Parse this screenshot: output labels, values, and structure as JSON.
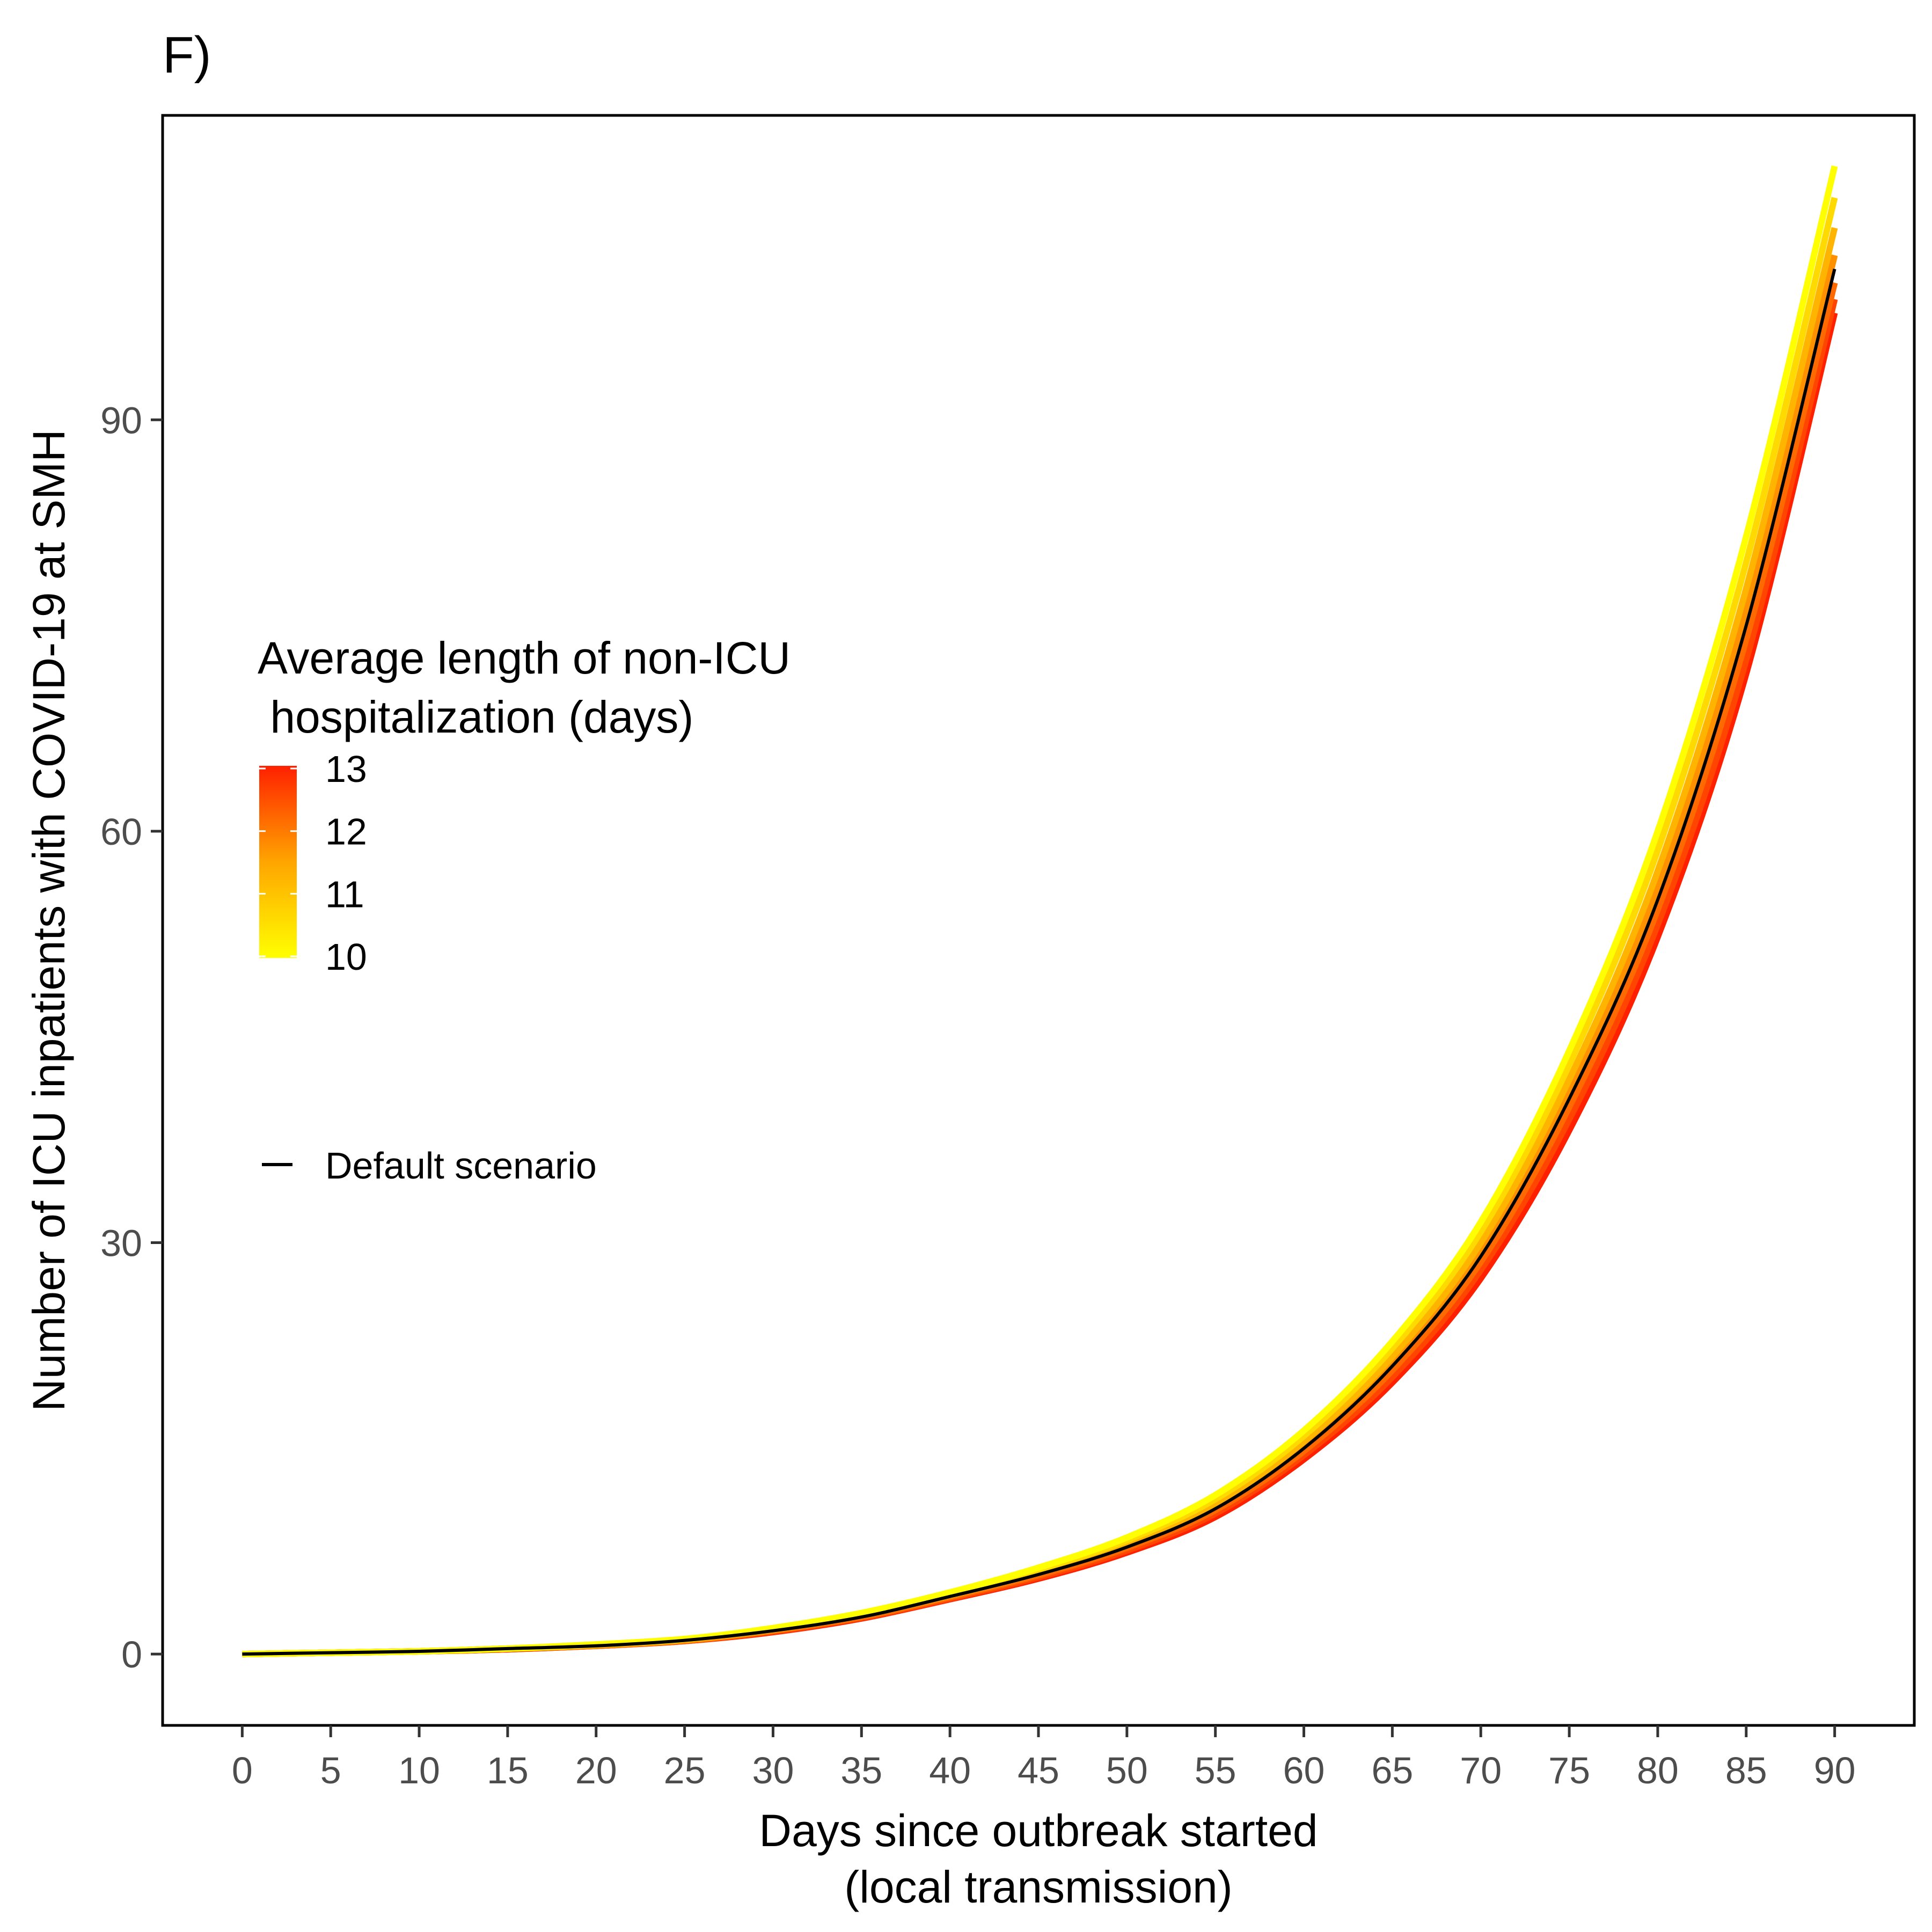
{
  "chart_data": {
    "type": "line",
    "panel_label": "F)",
    "xlabel_line1": "Days since outbreak started",
    "xlabel_line2": "(local transmission)",
    "ylabel": "Number of ICU inpatients with COVID-19 at SMH",
    "xlim": [
      -4.5,
      94.5
    ],
    "ylim": [
      -5.2,
      112.2
    ],
    "x_ticks": [
      0,
      5,
      10,
      15,
      20,
      25,
      30,
      35,
      40,
      45,
      50,
      55,
      60,
      65,
      70,
      75,
      80,
      85,
      90
    ],
    "y_ticks": [
      0,
      30,
      60,
      90
    ],
    "grid": false,
    "x": [
      0,
      5,
      10,
      15,
      20,
      25,
      30,
      35,
      40,
      45,
      50,
      55,
      60,
      65,
      70,
      75,
      80,
      85,
      90
    ],
    "series": [
      {
        "name": "Default scenario",
        "color": "#000000",
        "values": [
          0.0,
          0.1,
          0.2,
          0.4,
          0.6,
          1.0,
          1.7,
          2.7,
          4.2,
          5.8,
          7.8,
          10.6,
          15.0,
          21.0,
          29.0,
          40.5,
          55.0,
          75.0,
          101.0
        ]
      }
    ],
    "color_scale": {
      "title_line1": "Average length of non-ICU",
      "title_line2": " hospitalization (days)",
      "min": 10,
      "max": 13,
      "ticks": [
        13,
        12,
        11,
        10
      ],
      "low_color": "#ffff00",
      "high_color": "#ff2000"
    },
    "sensitivity_curves": [
      {
        "los": 10.0,
        "values": [
          0.0,
          0.1,
          0.2,
          0.4,
          0.7,
          1.1,
          1.9,
          3.0,
          4.5,
          6.3,
          8.5,
          11.6,
          16.3,
          22.8,
          31.5,
          44.0,
          60.0,
          81.5,
          108.5
        ]
      },
      {
        "los": 10.5,
        "values": [
          0.0,
          0.1,
          0.2,
          0.4,
          0.7,
          1.1,
          1.85,
          2.9,
          4.4,
          6.15,
          8.3,
          11.3,
          15.9,
          22.3,
          30.8,
          43.0,
          58.6,
          79.6,
          106.2
        ]
      },
      {
        "los": 11.0,
        "values": [
          0.0,
          0.1,
          0.2,
          0.4,
          0.65,
          1.05,
          1.8,
          2.85,
          4.3,
          6.0,
          8.1,
          11.0,
          15.5,
          21.7,
          30.0,
          41.9,
          57.1,
          77.7,
          104.0
        ]
      },
      {
        "los": 11.5,
        "values": [
          0.0,
          0.1,
          0.2,
          0.4,
          0.65,
          1.0,
          1.75,
          2.8,
          4.25,
          5.9,
          7.95,
          10.8,
          15.2,
          21.3,
          29.4,
          41.0,
          55.8,
          76.0,
          102.0
        ]
      },
      {
        "los": 12.0,
        "values": [
          0.0,
          0.1,
          0.2,
          0.4,
          0.6,
          1.0,
          1.7,
          2.7,
          4.15,
          5.75,
          7.75,
          10.5,
          14.8,
          20.7,
          28.6,
          39.9,
          54.3,
          74.0,
          100.0
        ]
      },
      {
        "los": 12.5,
        "values": [
          0.0,
          0.1,
          0.2,
          0.35,
          0.6,
          0.95,
          1.65,
          2.65,
          4.05,
          5.6,
          7.55,
          10.25,
          14.5,
          20.2,
          28.0,
          39.0,
          53.2,
          72.5,
          98.8
        ]
      },
      {
        "los": 13.0,
        "values": [
          0.0,
          0.1,
          0.2,
          0.35,
          0.6,
          0.95,
          1.6,
          2.6,
          4.0,
          5.5,
          7.4,
          10.0,
          14.2,
          19.8,
          27.4,
          38.2,
          52.3,
          71.5,
          97.8
        ]
      }
    ]
  }
}
